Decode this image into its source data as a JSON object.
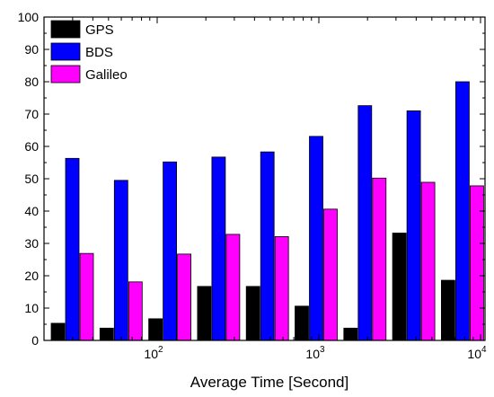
{
  "chart_data": {
    "type": "bar",
    "title": "",
    "xlabel": "Average Time [Second]",
    "ylabel": "",
    "ylim": [
      0,
      100
    ],
    "y_ticks": [
      0,
      10,
      20,
      30,
      40,
      50,
      60,
      70,
      80,
      90,
      100
    ],
    "x_scale": "log",
    "x_ticks": [
      {
        "label": "10",
        "sup": "2"
      },
      {
        "label": "10",
        "sup": "3"
      },
      {
        "label": "10",
        "sup": "4"
      }
    ],
    "grid": false,
    "legend_position": "top-left",
    "groups": 9,
    "series": [
      {
        "name": "GPS",
        "color": "#000000",
        "values": [
          5.3,
          3.8,
          6.7,
          16.7,
          16.7,
          10.6,
          3.8,
          33.2,
          18.6
        ]
      },
      {
        "name": "BDS",
        "color": "#0000ff",
        "values": [
          56.3,
          49.5,
          55.2,
          56.7,
          58.3,
          63.1,
          72.6,
          71.0,
          80.0
        ]
      },
      {
        "name": "Galileo",
        "color": "#ff00ff",
        "values": [
          26.9,
          18.1,
          26.7,
          32.8,
          32.1,
          40.6,
          50.2,
          48.9,
          47.8
        ]
      }
    ]
  }
}
